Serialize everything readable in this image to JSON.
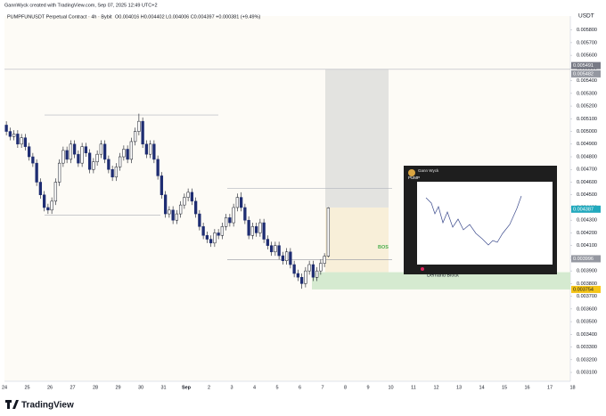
{
  "header": {
    "credit": "GannWyck created with TradingView.com, Sep 07, 2025 12:49 UTC+2",
    "symbol": "PUMPFUNUSDT Perpetual Contract · 4h · Bybit",
    "ohlc": "O0.004016 H0.004402 L0.004006 C0.004397 +0.000381 (+9.49%)"
  },
  "chart_data": {
    "type": "candlestick",
    "currency": "USDT",
    "up_color": "#ffffff",
    "down_color": "#1e2d72",
    "grid": false,
    "categories": [
      "24",
      "25",
      "26",
      "27",
      "28",
      "29",
      "30",
      "31",
      "Sep",
      "2",
      "3",
      "4",
      "5",
      "6",
      "7",
      "8",
      "9",
      "10",
      "11",
      "12",
      "13",
      "14",
      "15",
      "16",
      "17",
      "18"
    ],
    "open": [
      0.00505,
      0.005,
      0.00496,
      0.00498,
      0.0049,
      0.00495,
      0.00488,
      0.0048,
      0.00475,
      0.0046,
      0.0045,
      0.0044,
      0.00438,
      0.00445,
      0.0046,
      0.00475,
      0.00485,
      0.00478,
      0.0049,
      0.00482,
      0.00475,
      0.00488,
      0.00483,
      0.0047,
      0.00476,
      0.00482,
      0.0049,
      0.00478,
      0.0047,
      0.00464,
      0.00472,
      0.0048,
      0.00486,
      0.00478,
      0.00492,
      0.005,
      0.00508,
      0.0049,
      0.00482,
      0.0049,
      0.00478,
      0.00465,
      0.0045,
      0.00435,
      0.00438,
      0.0043,
      0.00435,
      0.00442,
      0.00448,
      0.00452,
      0.00445,
      0.00435,
      0.00425,
      0.00418,
      0.00415,
      0.00412,
      0.0042,
      0.00418,
      0.00425,
      0.00432,
      0.00428,
      0.0044,
      0.00448,
      0.0044,
      0.0043,
      0.00418,
      0.00425,
      0.0042,
      0.00428,
      0.00415,
      0.0041,
      0.00405,
      0.0041,
      0.00402,
      0.00398,
      0.00405,
      0.00395,
      0.00388,
      0.00385,
      0.0038,
      0.0039,
      0.00395,
      0.00385,
      0.0039,
      0.00396,
      0.004016
    ],
    "high": [
      0.00508,
      0.00503,
      0.00501,
      0.00501,
      0.00498,
      0.00498,
      0.00491,
      0.00483,
      0.00478,
      0.00463,
      0.00453,
      0.00443,
      0.00448,
      0.00463,
      0.00478,
      0.00488,
      0.00488,
      0.00493,
      0.00493,
      0.00485,
      0.00491,
      0.00491,
      0.00486,
      0.00479,
      0.00485,
      0.00493,
      0.00493,
      0.00481,
      0.00473,
      0.00475,
      0.00483,
      0.00489,
      0.00489,
      0.00495,
      0.00503,
      0.00514,
      0.00511,
      0.00493,
      0.00493,
      0.00493,
      0.00481,
      0.00468,
      0.00453,
      0.00441,
      0.00441,
      0.00438,
      0.00445,
      0.00451,
      0.00455,
      0.00455,
      0.00448,
      0.00438,
      0.00428,
      0.00421,
      0.00418,
      0.00423,
      0.00423,
      0.00428,
      0.00435,
      0.00435,
      0.00443,
      0.00451,
      0.00452,
      0.00443,
      0.00433,
      0.00428,
      0.00428,
      0.00431,
      0.00431,
      0.00418,
      0.00413,
      0.00413,
      0.00413,
      0.00405,
      0.00408,
      0.00408,
      0.00398,
      0.00391,
      0.00388,
      0.00393,
      0.00398,
      0.00398,
      0.00393,
      0.00399,
      0.00404,
      0.004402
    ],
    "low": [
      0.00497,
      0.00493,
      0.00493,
      0.00487,
      0.00487,
      0.00485,
      0.00477,
      0.00472,
      0.00457,
      0.00447,
      0.00437,
      0.00435,
      0.00435,
      0.00442,
      0.00457,
      0.00472,
      0.00475,
      0.00475,
      0.00479,
      0.00472,
      0.00472,
      0.0048,
      0.00467,
      0.00467,
      0.00473,
      0.00479,
      0.00475,
      0.00467,
      0.00461,
      0.00461,
      0.00469,
      0.00477,
      0.00475,
      0.00475,
      0.00489,
      0.00497,
      0.00487,
      0.00479,
      0.00479,
      0.00475,
      0.00462,
      0.00447,
      0.00432,
      0.00432,
      0.00427,
      0.00427,
      0.00432,
      0.00439,
      0.00445,
      0.00442,
      0.00432,
      0.00422,
      0.00415,
      0.00412,
      0.00409,
      0.00409,
      0.00415,
      0.00415,
      0.00422,
      0.00425,
      0.00425,
      0.00437,
      0.00437,
      0.00427,
      0.00415,
      0.00415,
      0.00417,
      0.00417,
      0.00412,
      0.00407,
      0.00402,
      0.00402,
      0.00399,
      0.00395,
      0.00395,
      0.00392,
      0.00385,
      0.00382,
      0.00376,
      0.00377,
      0.00387,
      0.00382,
      0.00382,
      0.00387,
      0.00393,
      0.004006
    ],
    "close": [
      0.005,
      0.00496,
      0.00498,
      0.0049,
      0.00495,
      0.00488,
      0.0048,
      0.00475,
      0.0046,
      0.0045,
      0.0044,
      0.00438,
      0.00445,
      0.0046,
      0.00475,
      0.00485,
      0.00478,
      0.0049,
      0.00482,
      0.00475,
      0.00488,
      0.00483,
      0.0047,
      0.00476,
      0.00482,
      0.0049,
      0.00478,
      0.0047,
      0.00464,
      0.00472,
      0.0048,
      0.00486,
      0.00478,
      0.00492,
      0.005,
      0.00508,
      0.0049,
      0.00482,
      0.0049,
      0.00478,
      0.00465,
      0.0045,
      0.00435,
      0.00438,
      0.0043,
      0.00435,
      0.00442,
      0.00448,
      0.00452,
      0.00445,
      0.00435,
      0.00425,
      0.00418,
      0.00415,
      0.00412,
      0.0042,
      0.00418,
      0.00425,
      0.00432,
      0.00428,
      0.0044,
      0.00448,
      0.0044,
      0.0043,
      0.00418,
      0.00425,
      0.0042,
      0.00428,
      0.00415,
      0.0041,
      0.00405,
      0.0041,
      0.00402,
      0.00398,
      0.00405,
      0.00395,
      0.00388,
      0.00385,
      0.0038,
      0.0039,
      0.00395,
      0.00385,
      0.0039,
      0.00396,
      0.004016,
      0.004397
    ],
    "ylim": [
      0.00303,
      0.00591
    ],
    "yticks": [
      {
        "value": 0.0031,
        "label": "0.003100"
      },
      {
        "value": 0.0032,
        "label": "0.003200"
      },
      {
        "value": 0.0033,
        "label": "0.003300"
      },
      {
        "value": 0.0034,
        "label": "0.003400"
      },
      {
        "value": 0.0035,
        "label": "0.003500"
      },
      {
        "value": 0.0036,
        "label": "0.003600"
      },
      {
        "value": 0.0037,
        "label": "0.003700"
      },
      {
        "value": 0.0038,
        "label": "0.003800"
      },
      {
        "value": 0.0039,
        "label": "0.003900"
      },
      {
        "value": 0.004,
        "label": "0.004000"
      },
      {
        "value": 0.0041,
        "label": "0.004100"
      },
      {
        "value": 0.0042,
        "label": "0.004200"
      },
      {
        "value": 0.0043,
        "label": "0.004300"
      },
      {
        "value": 0.0044,
        "label": "0.004400"
      },
      {
        "value": 0.0045,
        "label": "0.004500"
      },
      {
        "value": 0.0046,
        "label": "0.004600"
      },
      {
        "value": 0.0047,
        "label": "0.004700"
      },
      {
        "value": 0.0048,
        "label": "0.004800"
      },
      {
        "value": 0.0049,
        "label": "0.004900"
      },
      {
        "value": 0.005,
        "label": "0.005000"
      },
      {
        "value": 0.0051,
        "label": "0.005100"
      },
      {
        "value": 0.0052,
        "label": "0.005200"
      },
      {
        "value": 0.0053,
        "label": "0.005300"
      },
      {
        "value": 0.0054,
        "label": "0.005400"
      },
      {
        "value": 0.0055,
        "label": "0.005500"
      },
      {
        "value": 0.0056,
        "label": "0.005600"
      },
      {
        "value": 0.0057,
        "label": "0.005700"
      },
      {
        "value": 0.0058,
        "label": "0.005800"
      }
    ],
    "levels": [
      {
        "value": 0.00549,
        "color": "#b2b5be"
      },
      {
        "value": 0.00513,
        "color": "#b2b5be"
      },
      {
        "value": 0.00434,
        "color": "#9598a1"
      },
      {
        "value": 0.00455,
        "color": "#b2b5be"
      },
      {
        "value": 0.00399,
        "color": "#9598a1"
      }
    ],
    "zones": [
      {
        "from": 0.00549,
        "to": 0.0044,
        "color": "#e3e3e0"
      },
      {
        "from": 0.0044,
        "to": 0.00389,
        "color": "#f8efd9"
      },
      {
        "from": 0.00389,
        "to": 0.003754,
        "color": "#d5ead0",
        "label": "Demand Block"
      }
    ],
    "annotations": [
      {
        "text": "BOS",
        "value": 0.00408,
        "color": "#4caf50"
      }
    ],
    "price_labels": [
      {
        "value": 0.005491,
        "color": "#787b86"
      },
      {
        "value": 0.005482,
        "color": "#9598a1"
      },
      {
        "value": 0.004387,
        "color": "#22a9bd"
      },
      {
        "value": 0.003996,
        "color": "#9598a1"
      },
      {
        "value": 0.003754,
        "color": "#f5c518"
      }
    ]
  },
  "inset": {
    "author": "Gann Wyck",
    "title": "PUMP"
  },
  "footer": {
    "brand": "TradingView"
  }
}
